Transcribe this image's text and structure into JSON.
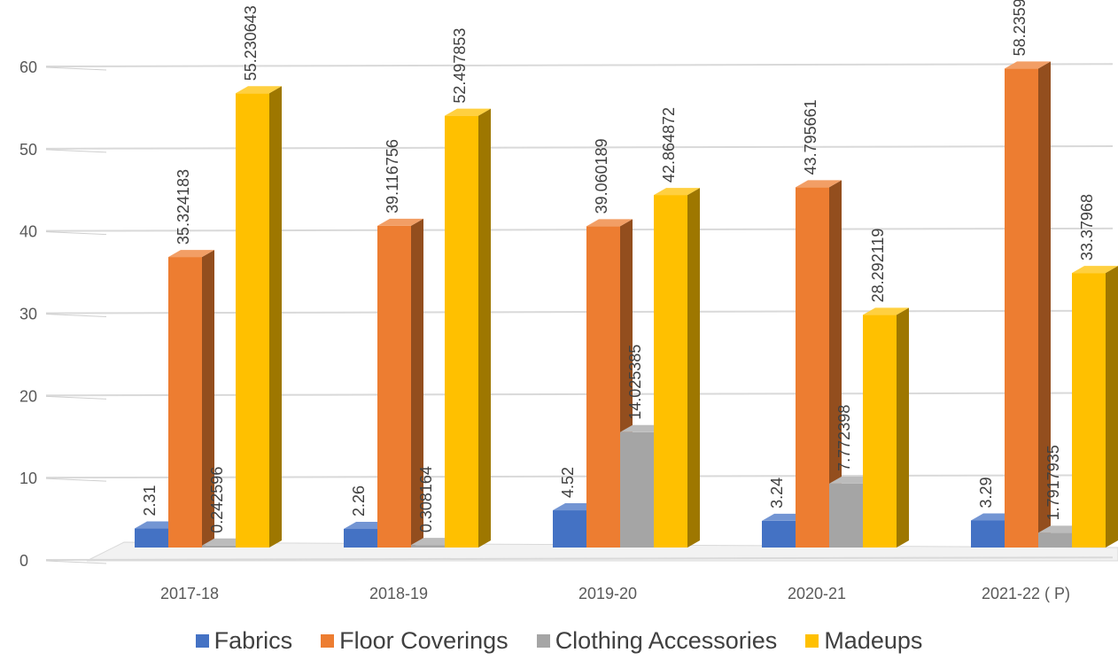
{
  "chart_data": {
    "type": "bar",
    "categories": [
      "2017-18",
      "2018-19",
      "2019-20",
      "2020-21",
      "2021-22 ( P)"
    ],
    "series": [
      {
        "name": "Fabrics",
        "color": "#4472C4",
        "values": [
          2.31,
          2.26,
          4.52,
          3.24,
          3.29
        ],
        "labels": [
          "2.31",
          "2.26",
          "4.52",
          "3.24",
          "3.29"
        ]
      },
      {
        "name": "Floor Coverings",
        "color": "#ED7D31",
        "values": [
          35.324183,
          39.116756,
          39.060189,
          43.795661,
          58.2359
        ],
        "labels": [
          "35.324183",
          "39.116756",
          "39.060189",
          "43.795661",
          "58.2359"
        ]
      },
      {
        "name": "Clothing Accessories",
        "color": "#A5A5A5",
        "values": [
          0.242596,
          0.308164,
          14.025385,
          7.772398,
          1.7917935
        ],
        "labels": [
          "0.242596",
          "0.308164",
          "14.025385",
          "7.772398",
          "1.7917935"
        ]
      },
      {
        "name": "Madeups",
        "color": "#FFC000",
        "values": [
          55.230643,
          52.497853,
          42.864872,
          28.292119,
          33.37968
        ],
        "labels": [
          "55.230643",
          "52.497853",
          "42.864872",
          "28.292119",
          "33.37968"
        ]
      }
    ],
    "yticks": [
      "0",
      "10",
      "20",
      "30",
      "40",
      "50",
      "60"
    ],
    "ylim": [
      0,
      60
    ],
    "title": "",
    "xlabel": "",
    "ylabel": "",
    "grid": true,
    "legend_position": "bottom",
    "style": "3d-clustered-column"
  }
}
